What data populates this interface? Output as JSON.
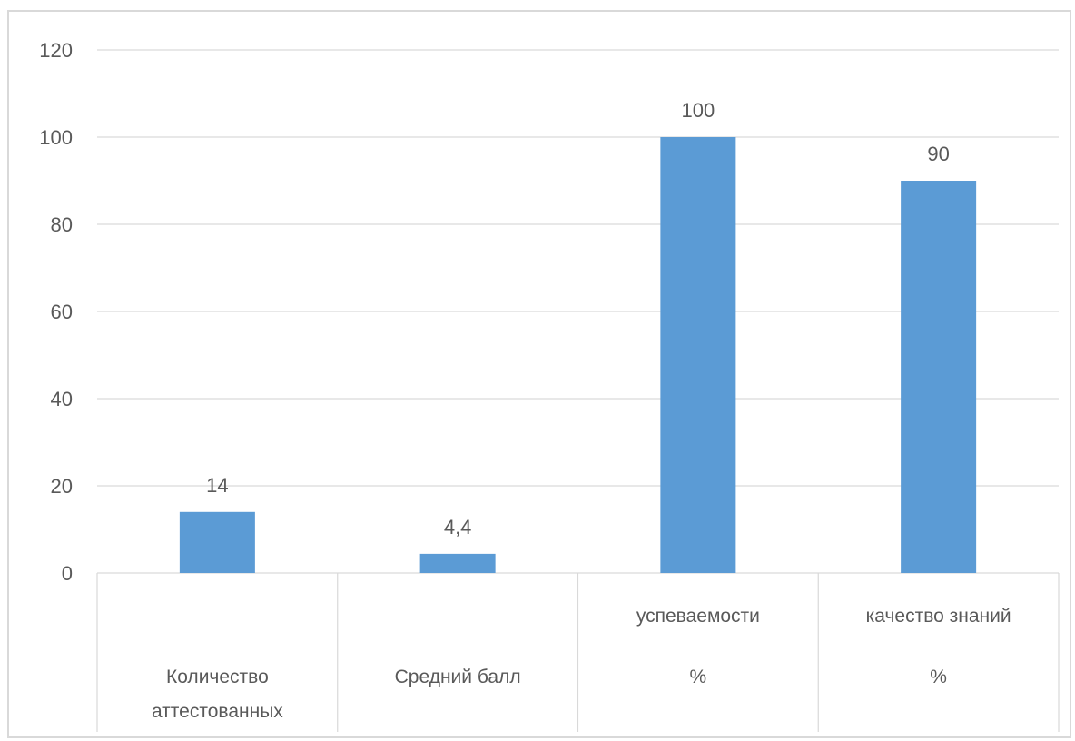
{
  "chart_data": {
    "type": "bar",
    "title": "",
    "xlabel": "",
    "ylabel": "",
    "ylim": [
      0,
      120
    ],
    "yticks": [
      0,
      20,
      40,
      60,
      80,
      100,
      120
    ],
    "grid": true,
    "legend": "none",
    "bar_color": "#5b9bd5",
    "categories": [
      [
        "Количество",
        "аттестованных"
      ],
      [
        "Средний балл"
      ],
      [
        "успеваемости",
        "%"
      ],
      [
        "качество знаний",
        "%"
      ]
    ],
    "values": [
      14,
      4.4,
      100,
      90
    ],
    "data_labels": [
      "14",
      "4,4",
      "100",
      "90"
    ]
  }
}
